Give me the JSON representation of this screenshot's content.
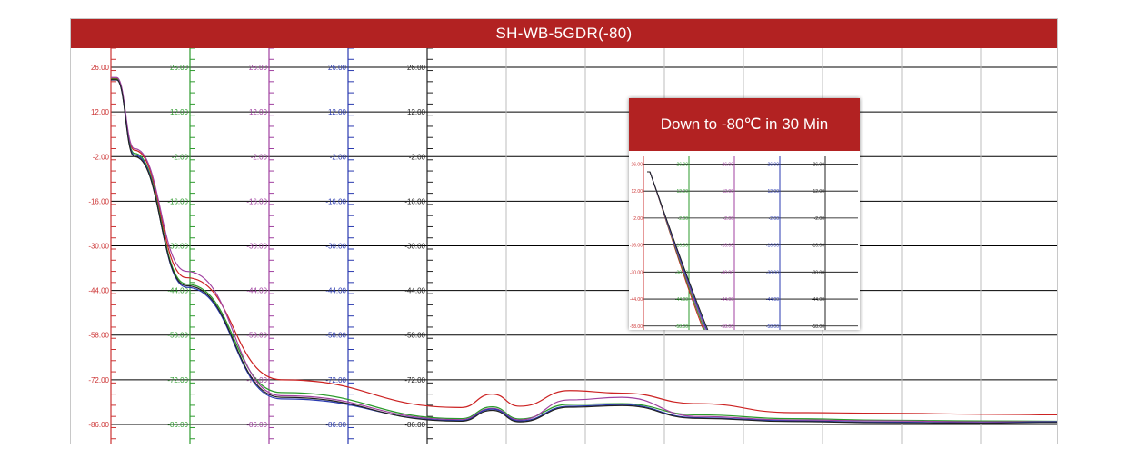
{
  "chart_data": {
    "type": "line",
    "title": "SH-WB-5GDR(-80)",
    "xlabel": "",
    "ylabel": "",
    "x_range": [
      0,
      1
    ],
    "ylim": [
      -92,
      32
    ],
    "y_ticks": [
      "26.00",
      "12.00",
      "-2.00",
      "-16.00",
      "-30.00",
      "-44.00",
      "-58.00",
      "-72.00",
      "-86.00"
    ],
    "axes": [
      {
        "color": "#cc3333",
        "tick_labels": [
          "26.00",
          "12.00",
          "-2.00",
          "-16.00",
          "-30.00",
          "-44.00",
          "-58.00",
          "-72.00",
          "-86.00"
        ]
      },
      {
        "color": "#2e9b2e",
        "tick_labels": [
          "26.00",
          "12.00",
          "-2.00",
          "-16.00",
          "-30.00",
          "-44.00",
          "-58.00",
          "-72.00",
          "-86.00"
        ]
      },
      {
        "color": "#a040a0",
        "tick_labels": [
          "26.00",
          "12.00",
          "-2.00",
          "-16.00",
          "-30.00",
          "-44.00",
          "-58.00",
          "-72.00",
          "-86.00"
        ]
      },
      {
        "color": "#2a3ab0",
        "tick_labels": [
          "26.00",
          "12.00",
          "-2.00",
          "-16.00",
          "-30.00",
          "-44.00",
          "-58.00",
          "-72.00",
          "-86.00"
        ]
      },
      {
        "color": "#222222",
        "tick_labels": [
          "26.00",
          "12.00",
          "-2.00",
          "-16.00",
          "-30.00",
          "-44.00",
          "-58.00",
          "-72.00",
          "-86.00"
        ]
      }
    ],
    "grid": true,
    "series": [
      {
        "color": "#cc2222",
        "x": [
          0,
          0.006,
          0.025,
          0.08,
          0.18,
          0.37,
          0.403,
          0.432,
          0.485,
          0.54,
          0.62,
          0.72,
          0.82,
          0.92,
          1.0
        ],
        "y": [
          22.5,
          22.5,
          0,
          -40,
          -72,
          -80.7,
          -76.5,
          -80.3,
          -75.4,
          -76.2,
          -79.5,
          -82.3,
          -82.5,
          -82.8,
          -83
        ]
      },
      {
        "color": "#2a9b2a",
        "x": [
          0,
          0.006,
          0.025,
          0.08,
          0.18,
          0.37,
          0.403,
          0.432,
          0.485,
          0.54,
          0.62,
          0.72,
          0.82,
          0.92,
          1.0
        ],
        "y": [
          22.3,
          22.3,
          -1,
          -42,
          -76,
          -84.2,
          -80.5,
          -84.3,
          -79.7,
          -79.5,
          -83.0,
          -84.2,
          -84.7,
          -84.9,
          -85
        ]
      },
      {
        "color": "#a040a0",
        "x": [
          0,
          0.006,
          0.025,
          0.08,
          0.18,
          0.37,
          0.403,
          0.432,
          0.485,
          0.54,
          0.62,
          0.72,
          0.82,
          0.92,
          1.0
        ],
        "y": [
          22.8,
          22.8,
          0.5,
          -38,
          -77,
          -84.5,
          -81.0,
          -84.6,
          -78.3,
          -77.5,
          -83.5,
          -84.6,
          -84.9,
          -85.2,
          -85.1
        ]
      },
      {
        "color": "#2a3ab0",
        "x": [
          0,
          0.006,
          0.025,
          0.08,
          0.18,
          0.37,
          0.403,
          0.432,
          0.485,
          0.54,
          0.62,
          0.72,
          0.82,
          0.92,
          1.0
        ],
        "y": [
          22.0,
          22.0,
          -1.5,
          -43,
          -78,
          -84.8,
          -81.2,
          -84.9,
          -80.3,
          -79.8,
          -83.9,
          -84.9,
          -85.3,
          -85.5,
          -85.2
        ]
      },
      {
        "color": "#222222",
        "x": [
          0,
          0.006,
          0.025,
          0.08,
          0.18,
          0.37,
          0.403,
          0.432,
          0.485,
          0.54,
          0.62,
          0.72,
          0.82,
          0.92,
          1.0
        ],
        "y": [
          22.1,
          22.1,
          -2,
          -42.5,
          -77.5,
          -85.0,
          -81.6,
          -85.2,
          -80.6,
          -80.1,
          -84.1,
          -85.1,
          -85.5,
          -85.6,
          -85.4
        ]
      }
    ]
  },
  "inset": {
    "title": "Down to -80℃ in 30 Min",
    "y_ticks": [
      "26.00",
      "12.00",
      "-2.00",
      "-16.00",
      "-30.00",
      "-44.00",
      "-58.00"
    ]
  }
}
